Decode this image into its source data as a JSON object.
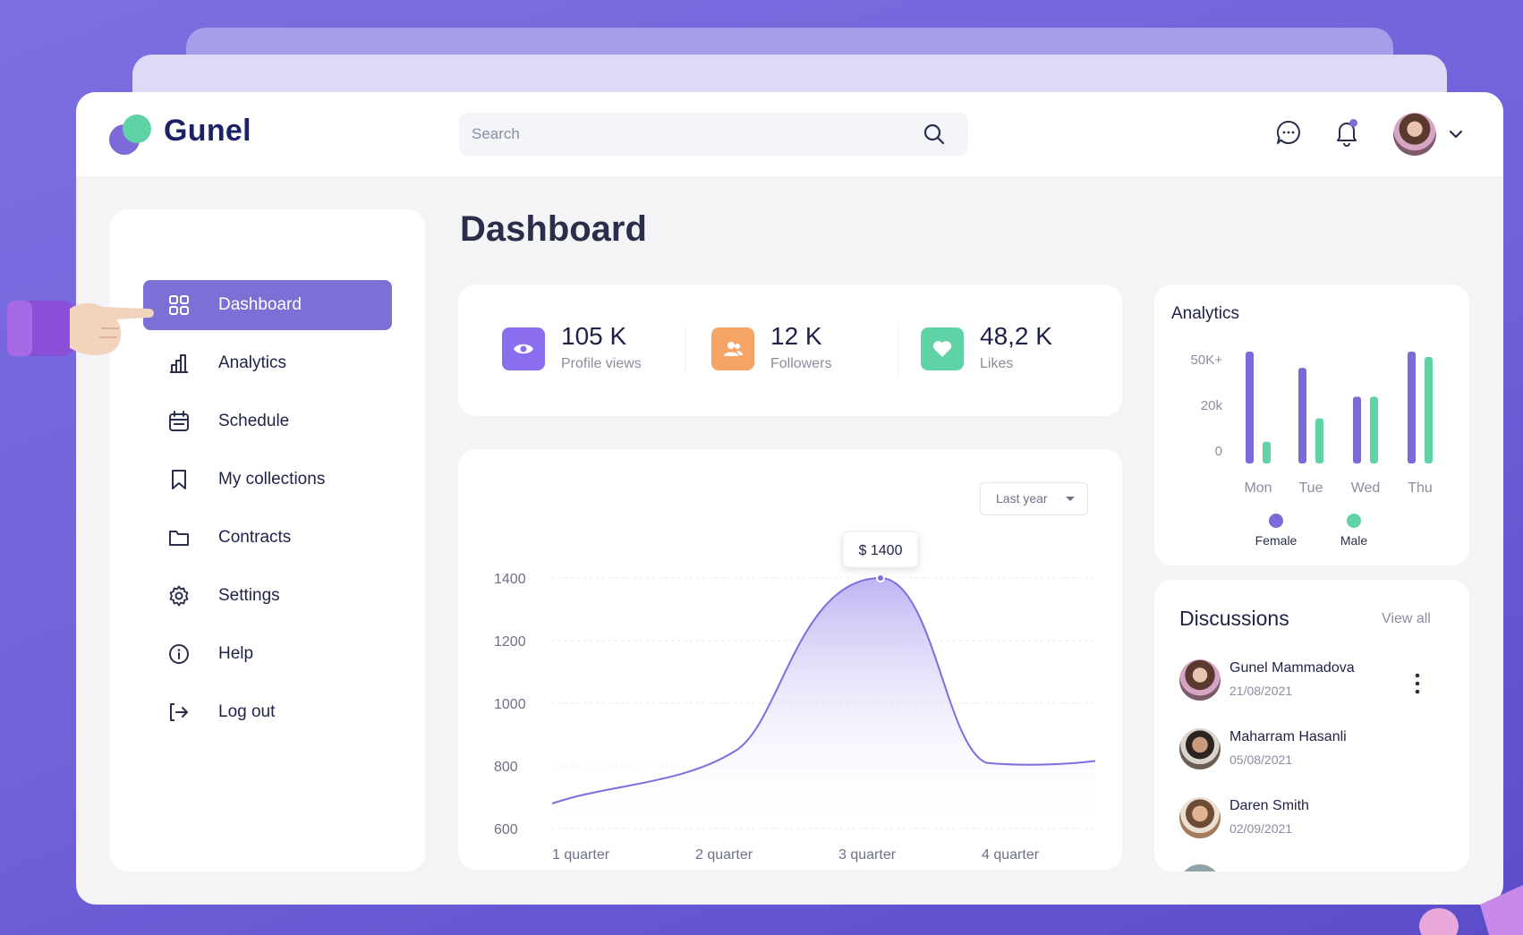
{
  "app": {
    "brand": "Gunel"
  },
  "search": {
    "placeholder": "Search"
  },
  "sidebar": {
    "items": [
      {
        "label": "Dashboard",
        "icon": "grid-icon",
        "active": true
      },
      {
        "label": "Analytics",
        "icon": "bar-chart-icon"
      },
      {
        "label": "Schedule",
        "icon": "calendar-icon"
      },
      {
        "label": "My collections",
        "icon": "bookmark-icon"
      },
      {
        "label": "Contracts",
        "icon": "folder-icon"
      },
      {
        "label": "Settings",
        "icon": "gear-icon"
      },
      {
        "label": "Help",
        "icon": "info-icon"
      },
      {
        "label": "Log out",
        "icon": "logout-icon"
      }
    ]
  },
  "page": {
    "title": "Dashboard"
  },
  "stats": [
    {
      "value": "105 K",
      "label": "Profile views",
      "color": "#8b6df0",
      "icon": "eye-icon"
    },
    {
      "value": "12 K",
      "label": "Followers",
      "color": "#f6a366",
      "icon": "users-icon"
    },
    {
      "value": "48,2 K",
      "label": "Likes",
      "color": "#5fd3a6",
      "icon": "heart-icon"
    }
  ],
  "main_chart": {
    "period": "Last year",
    "tooltip": "$ 1400",
    "y_ticks": [
      "1400",
      "1200",
      "1000",
      "800",
      "600"
    ],
    "x_ticks": [
      "1 quarter",
      "2 quarter",
      "3 quarter",
      "4 quarter"
    ],
    "accent": "#7b6fe0"
  },
  "analytics": {
    "title": "Analytics",
    "y_ticks": [
      "50K+",
      "20k",
      "0"
    ],
    "legend": [
      {
        "name": "Female",
        "color": "#7c6ad8"
      },
      {
        "name": "Male",
        "color": "#5fd3a6"
      }
    ]
  },
  "chart_data": [
    {
      "type": "area",
      "x": [
        "1 quarter",
        "2 quarter",
        "3 quarter",
        "4 quarter"
      ],
      "series": [
        {
          "values": [
            680,
            820,
            1400,
            810
          ]
        }
      ],
      "ylim": [
        600,
        1400
      ],
      "annotations": [
        "$ 1400"
      ]
    },
    {
      "type": "bar",
      "title": "Analytics",
      "categories": [
        "Mon",
        "Tue",
        "Wed",
        "Thu"
      ],
      "series": [
        {
          "name": "Female",
          "values": [
            62,
            53,
            37,
            62
          ]
        },
        {
          "name": "Male",
          "values": [
            12,
            25,
            37,
            59
          ]
        }
      ],
      "ylim": [
        0,
        62
      ],
      "legend": "bottom"
    }
  ],
  "discussions": {
    "title": "Discussions",
    "view_all": "View all",
    "items": [
      {
        "name": "Gunel Mammadova",
        "date": "21/08/2021"
      },
      {
        "name": "Maharram Hasanli",
        "date": "05/08/2021"
      },
      {
        "name": "Daren Smith",
        "date": "02/09/2021"
      }
    ]
  }
}
